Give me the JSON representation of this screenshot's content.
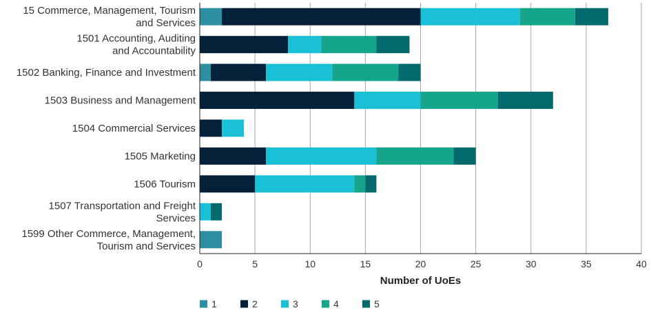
{
  "chart_data": {
    "type": "bar",
    "orientation": "horizontal",
    "stacked": true,
    "title": "",
    "xlabel": "Number of UoEs",
    "ylabel": "",
    "xlim": [
      0,
      40
    ],
    "xticks": [
      0,
      5,
      10,
      15,
      20,
      25,
      30,
      35,
      40
    ],
    "grid": "vertical",
    "legend_position": "bottom-left",
    "categories": [
      [
        "15 Commerce, Management, Tourism",
        "and Services"
      ],
      [
        "1501 Accounting, Auditing",
        "and Accountability"
      ],
      [
        "1502 Banking, Finance and Investment"
      ],
      [
        "1503 Business and Management"
      ],
      [
        "1504 Commercial Services"
      ],
      [
        "1505 Marketing"
      ],
      [
        "1506 Tourism"
      ],
      [
        "1507 Transportation and Freight",
        "Services"
      ],
      [
        "1599 Other Commerce, Management,",
        "Tourism and Services"
      ]
    ],
    "series": [
      {
        "name": "1",
        "color": "#2e8fa3",
        "values": [
          2,
          0,
          1,
          0,
          0,
          0,
          0,
          0,
          2
        ]
      },
      {
        "name": "2",
        "color": "#05213a",
        "values": [
          18,
          8,
          5,
          14,
          2,
          6,
          5,
          0,
          0
        ]
      },
      {
        "name": "3",
        "color": "#19c0d6",
        "values": [
          9,
          3,
          6,
          6,
          2,
          10,
          9,
          1,
          0
        ]
      },
      {
        "name": "4",
        "color": "#14a58a",
        "values": [
          5,
          5,
          6,
          7,
          0,
          7,
          1,
          0,
          0
        ]
      },
      {
        "name": "5",
        "color": "#036a6e",
        "values": [
          3,
          3,
          2,
          5,
          0,
          2,
          1,
          1,
          0
        ]
      }
    ]
  }
}
